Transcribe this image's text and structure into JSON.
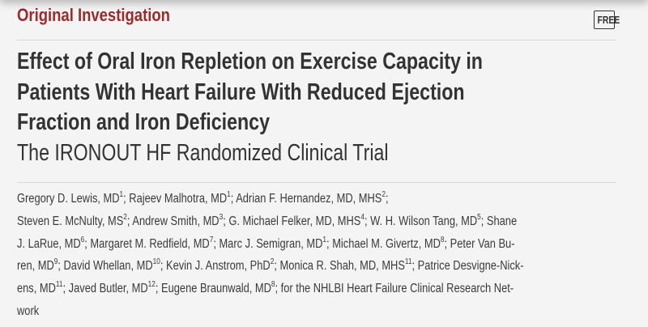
{
  "header": {
    "section_label": "Original Investigation",
    "badge": "FREE",
    "accent_color": "#9b2a2a"
  },
  "article": {
    "title_lines": [
      "Effect of Oral Iron Repletion on Exercise Capacity in",
      "Patients With Heart Failure With Reduced Ejection",
      "Fraction and Iron Deficiency"
    ],
    "subtitle": "The IRONOUT HF Randomized Clinical Trial",
    "author_lines": [
      [
        {
          "t": "Gregory D. Lewis, MD",
          "s": "1"
        },
        {
          "t": "; Rajeev Malhotra, MD",
          "s": "1"
        },
        {
          "t": "; Adrian F. Hernandez, MD, MHS",
          "s": "2"
        },
        {
          "t": ";",
          "s": ""
        }
      ],
      [
        {
          "t": "Steven E. McNulty, MS",
          "s": "2"
        },
        {
          "t": "; Andrew Smith, MD",
          "s": "3"
        },
        {
          "t": "; G. Michael Felker, MD, MHS",
          "s": "4"
        },
        {
          "t": "; W. H. Wilson Tang, MD",
          "s": "5"
        },
        {
          "t": "; Shane",
          "s": ""
        }
      ],
      [
        {
          "t": "J. LaRue, MD",
          "s": "6"
        },
        {
          "t": "; Margaret M. Redfield, MD",
          "s": "7"
        },
        {
          "t": "; Marc J. Semigran, MD",
          "s": "1"
        },
        {
          "t": "; Michael M. Givertz, MD",
          "s": "8"
        },
        {
          "t": "; Peter Van Bu-",
          "s": ""
        }
      ],
      [
        {
          "t": "ren, MD",
          "s": "9"
        },
        {
          "t": "; David Whellan, MD",
          "s": "10"
        },
        {
          "t": "; Kevin J. Anstrom, PhD",
          "s": "2"
        },
        {
          "t": "; Monica R. Shah, MD, MHS",
          "s": "11"
        },
        {
          "t": "; Patrice Desvigne-Nick-",
          "s": ""
        }
      ],
      [
        {
          "t": "ens, MD",
          "s": "11"
        },
        {
          "t": "; Javed Butler, MD",
          "s": "12"
        },
        {
          "t": "; Eugene Braunwald, MD",
          "s": "8"
        },
        {
          "t": "; for the NHLBI Heart Failure Clinical Research Net-",
          "s": ""
        }
      ],
      [
        {
          "t": "work",
          "s": ""
        }
      ]
    ]
  }
}
